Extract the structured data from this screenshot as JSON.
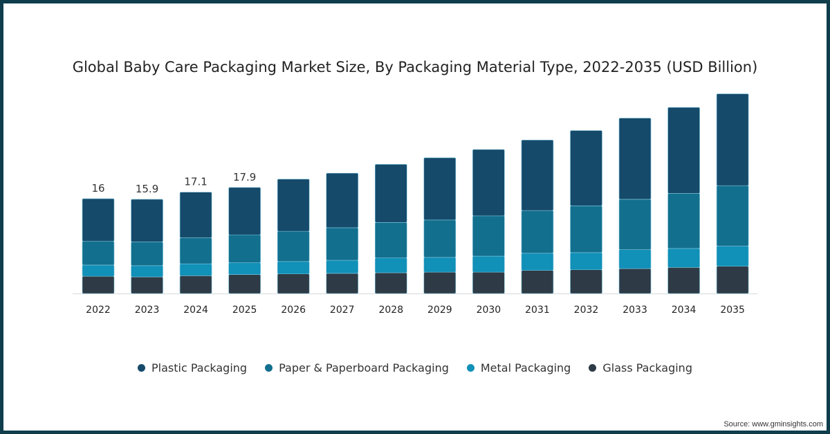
{
  "chart_data": {
    "type": "bar",
    "stacked": true,
    "title": "Global Baby Care Packaging Market Size, By Packaging Material Type, 2022-2035 (USD Billion)",
    "xlabel": "",
    "ylabel": "USD Billion",
    "categories": [
      "2022",
      "2023",
      "2024",
      "2025",
      "2026",
      "2027",
      "2028",
      "2029",
      "2030",
      "2031",
      "2032",
      "2033",
      "2034",
      "2035"
    ],
    "series": [
      {
        "name": "Glass Packaging",
        "color": "#2e3b46",
        "values": [
          2.9,
          2.8,
          3.0,
          3.2,
          3.3,
          3.4,
          3.5,
          3.6,
          3.6,
          3.9,
          4.0,
          4.2,
          4.4,
          4.6
        ]
      },
      {
        "name": "Metal Packaging",
        "color": "#1190b8",
        "values": [
          1.9,
          1.9,
          2.0,
          2.0,
          2.1,
          2.2,
          2.5,
          2.5,
          2.7,
          2.9,
          2.9,
          3.2,
          3.2,
          3.4
        ]
      },
      {
        "name": "Paper & Paperboard Packaging",
        "color": "#136f8e",
        "values": [
          4.0,
          4.0,
          4.4,
          4.7,
          5.1,
          5.5,
          6.0,
          6.3,
          6.8,
          7.2,
          7.9,
          8.5,
          9.3,
          10.2
        ]
      },
      {
        "name": "Plastic Packaging",
        "color": "#164a6b",
        "values": [
          7.2,
          7.2,
          7.7,
          8.0,
          8.8,
          9.2,
          9.8,
          10.5,
          11.2,
          11.9,
          12.7,
          13.7,
          14.5,
          15.5
        ]
      }
    ],
    "data_labels": [
      "16",
      "15.9",
      "17.1",
      "17.9"
    ],
    "legend_order": [
      "Plastic Packaging",
      "Paper & Paperboard Packaging",
      "Metal Packaging",
      "Glass Packaging"
    ],
    "legend_position": "bottom",
    "grid": false,
    "ylim": [
      0,
      35
    ]
  },
  "source": "Source: www.gminsights.com"
}
